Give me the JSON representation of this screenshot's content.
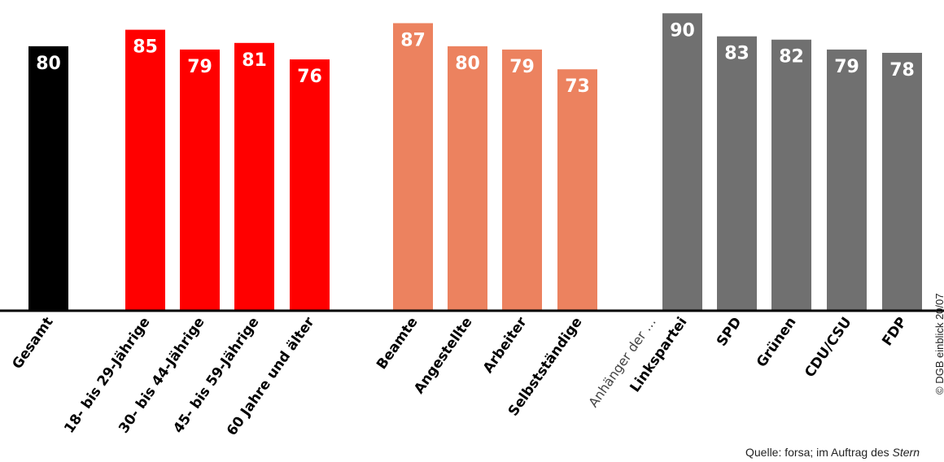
{
  "chart_data": {
    "type": "bar",
    "title": "",
    "xlabel": "",
    "ylabel": "",
    "ylim": [
      0,
      100
    ],
    "grid": false,
    "legend": "none",
    "value_labels": true,
    "value_label_color": "#ffffff",
    "axis_color": "#000000",
    "label_orientation": "rotated -55deg",
    "categories": [
      "Gesamt",
      "18- bis 29-Jährige",
      "30- bis 44-Jährige",
      "45- bis 59-Jährige",
      "60 Jahre und älter",
      "Beamte",
      "Angestellte",
      "Arbeiter",
      "Selbstständige",
      "Linkspartei",
      "SPD",
      "Grünen",
      "CDU/CSU",
      "FDP"
    ],
    "values": [
      80,
      85,
      79,
      81,
      76,
      87,
      80,
      79,
      73,
      90,
      83,
      82,
      79,
      78
    ],
    "groups": [
      {
        "name": "",
        "members": [
          "Gesamt"
        ],
        "color": "#000000"
      },
      {
        "name": "",
        "members": [
          "18- bis 29-Jährige",
          "30- bis 44-Jährige",
          "45- bis 59-Jährige",
          "60 Jahre und älter"
        ],
        "color": "#ff0000"
      },
      {
        "name": "",
        "members": [
          "Beamte",
          "Angestellte",
          "Arbeiter",
          "Selbstständige"
        ],
        "color": "#ec825f"
      },
      {
        "name": "Anhänger der …",
        "members": [
          "Linkspartei",
          "SPD",
          "Grünen",
          "CDU/CSU",
          "FDP"
        ],
        "color": "#707070"
      }
    ]
  },
  "source": {
    "prefix": "Quelle: forsa; im Auftrag des ",
    "emphasis": "Stern"
  },
  "copyright": "© DGB einblick 20/07"
}
